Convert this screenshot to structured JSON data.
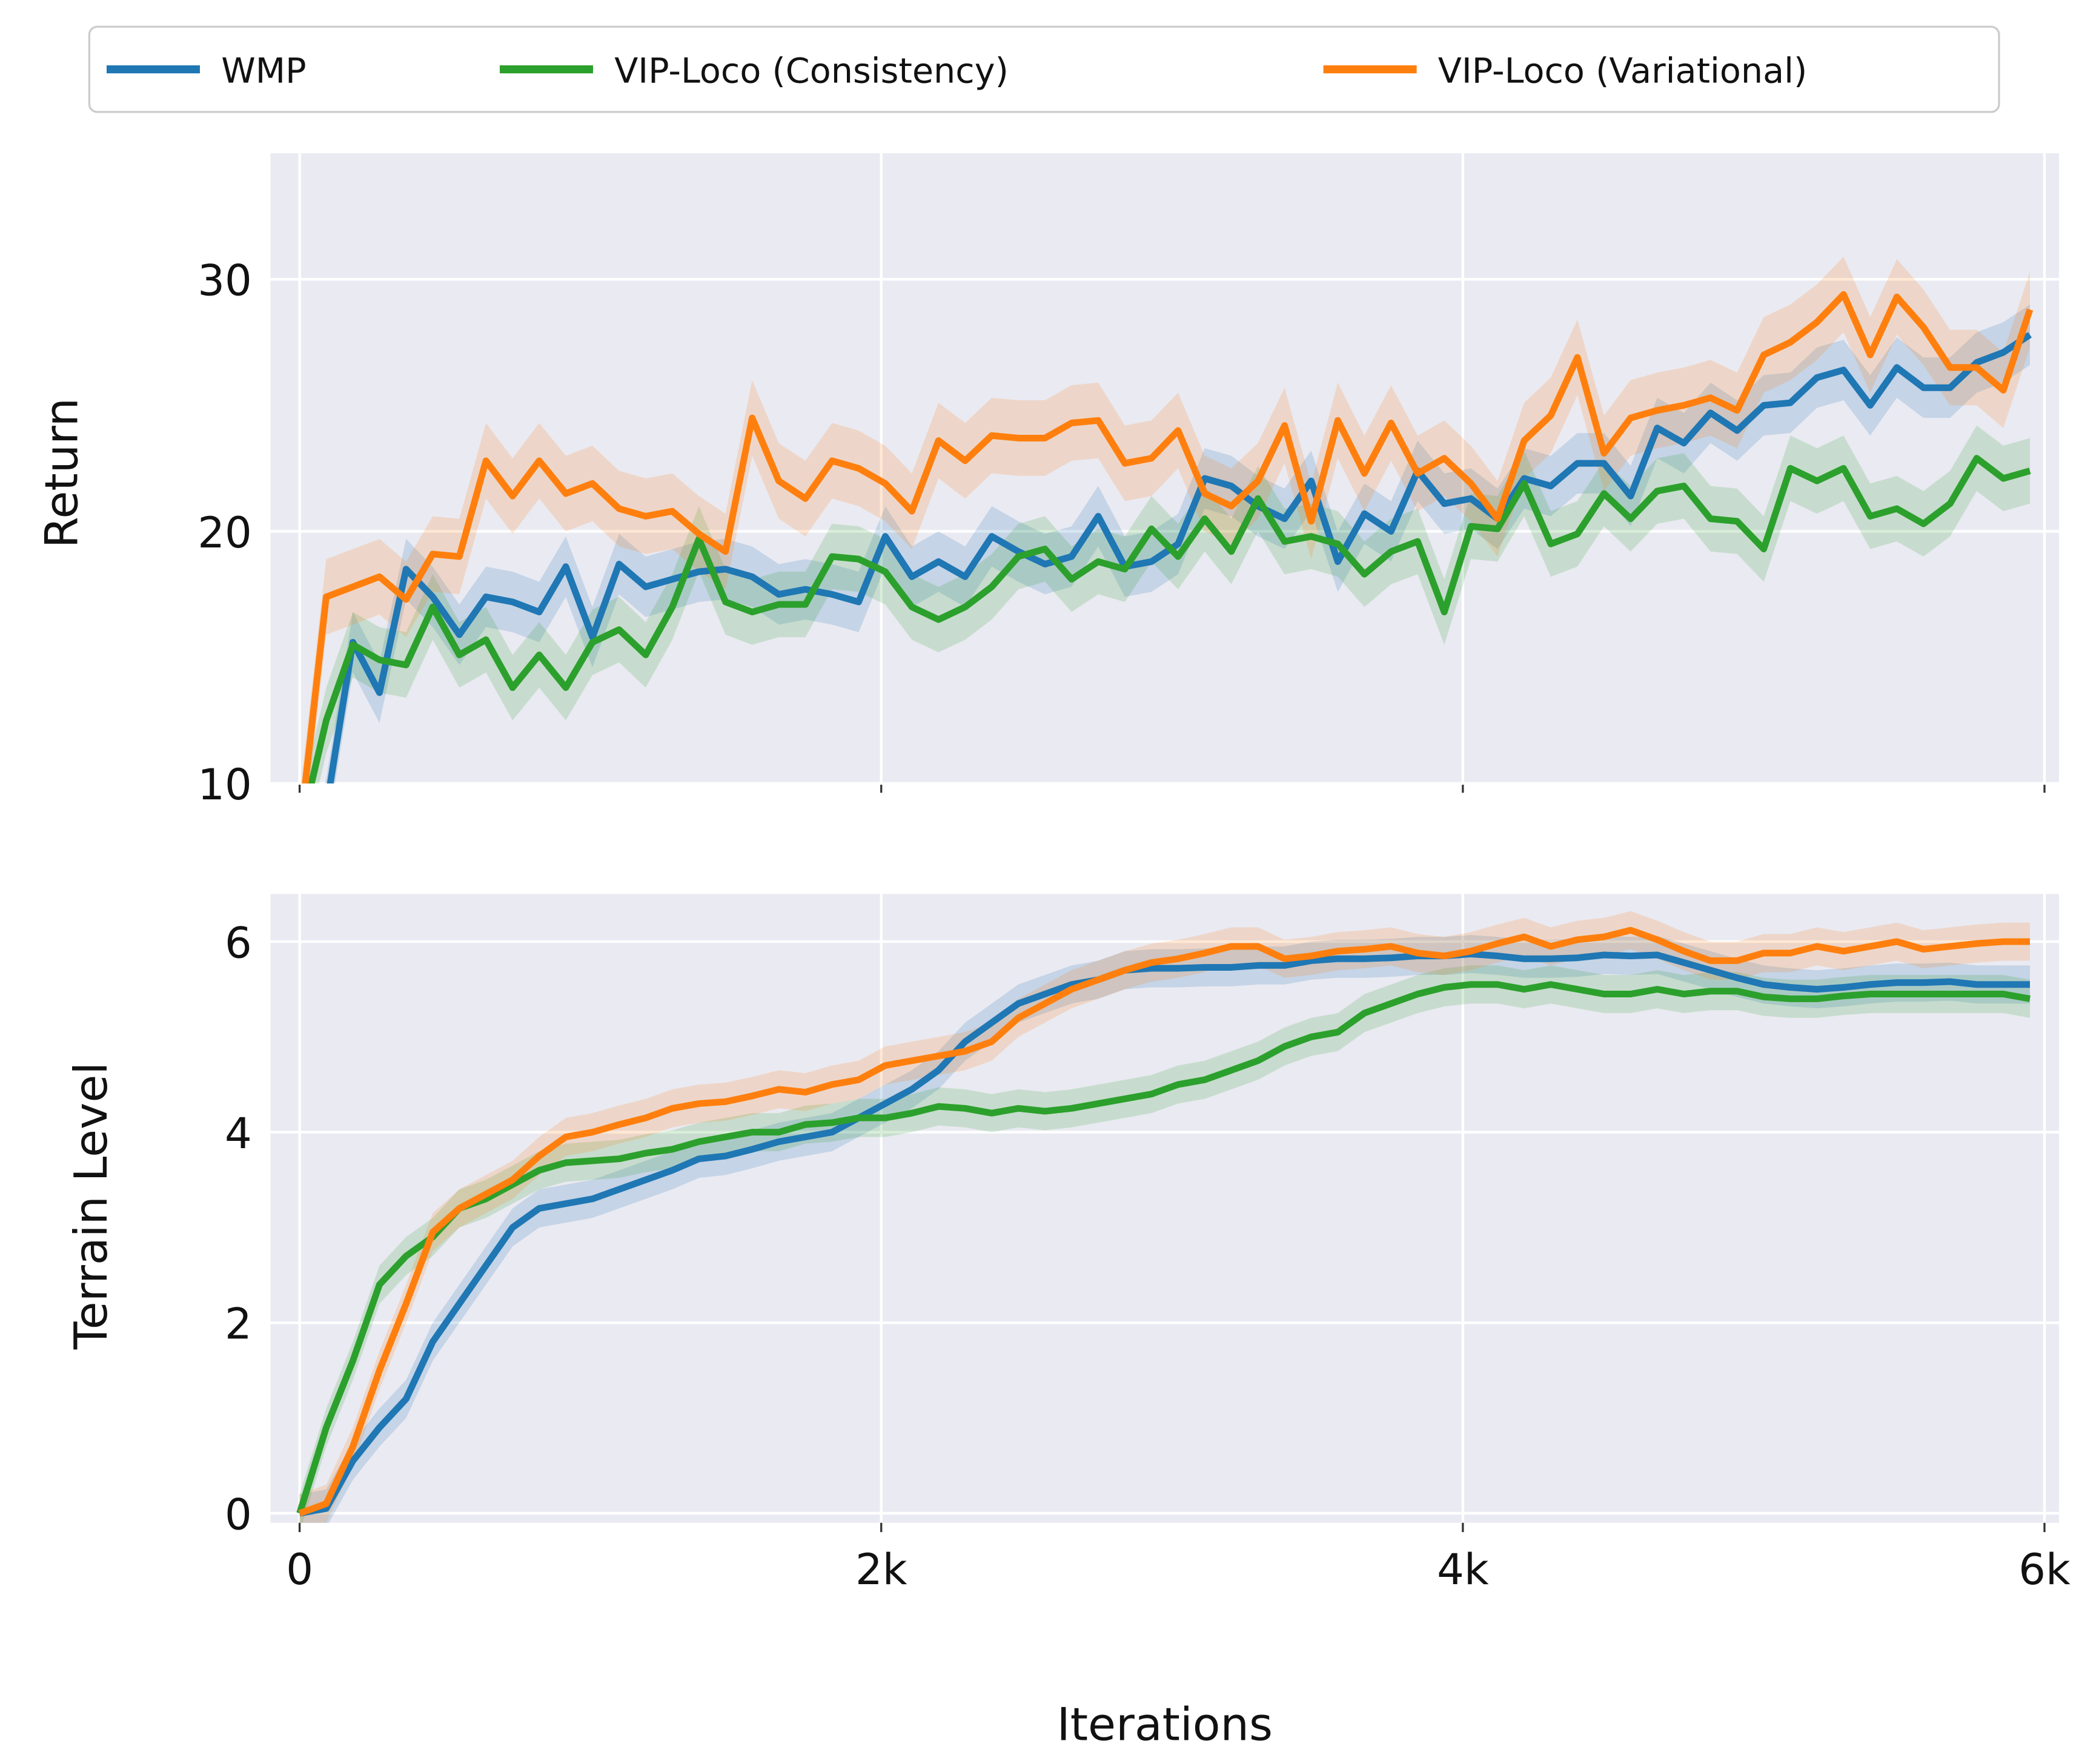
{
  "chart_data": [
    {
      "type": "line",
      "ylabel": "Return",
      "xlabel": "",
      "ylim": [
        10,
        35
      ],
      "yticks": [
        "10",
        "20",
        "30"
      ],
      "ytick_values": [
        10,
        20,
        30
      ],
      "xlim": [
        -100,
        6050
      ],
      "xtick_values": [
        0,
        2000,
        4000,
        6000
      ],
      "grid": true,
      "x_first": 0,
      "x_last": 5950,
      "series": [
        {
          "name": "WMP",
          "color": "#1f77b4",
          "band": 1.2,
          "values": [
            5,
            9,
            15.6,
            13.6,
            18.5,
            17.4,
            15.9,
            17.4,
            17.2,
            16.8,
            18.6,
            15.8,
            18.7,
            17.8,
            18.1,
            18.4,
            18.5,
            18.2,
            17.5,
            17.7,
            17.5,
            17.2,
            19.8,
            18.2,
            18.8,
            18.2,
            19.8,
            19.2,
            18.7,
            19.0,
            20.6,
            18.6,
            18.8,
            19.5,
            22.1,
            21.8,
            21.0,
            20.5,
            22.0,
            18.8,
            20.7,
            20.0,
            22.4,
            21.1,
            21.3,
            20.5,
            22.1,
            21.8,
            22.7,
            22.7,
            21.4,
            24.1,
            23.5,
            24.7,
            24.0,
            25.0,
            25.1,
            26.1,
            26.4,
            25.0,
            26.5,
            25.7,
            25.7,
            26.7,
            27.1,
            27.8
          ]
        },
        {
          "name": "VIP-Loco (Consistency)",
          "color": "#2ca02c",
          "band": 1.3,
          "values": [
            8,
            12.5,
            15.5,
            14.9,
            14.7,
            17.0,
            15.1,
            15.7,
            13.8,
            15.1,
            13.8,
            15.6,
            16.1,
            15.1,
            17.0,
            19.7,
            17.2,
            16.8,
            17.1,
            17.1,
            19.0,
            18.9,
            18.4,
            17.0,
            16.5,
            17.0,
            17.8,
            19.0,
            19.3,
            18.1,
            18.8,
            18.5,
            20.1,
            19.0,
            20.5,
            19.2,
            21.3,
            19.6,
            19.8,
            19.5,
            18.3,
            19.2,
            19.6,
            16.8,
            20.2,
            20.1,
            21.9,
            19.5,
            19.9,
            21.5,
            20.5,
            21.6,
            21.8,
            20.5,
            20.4,
            19.3,
            22.5,
            22.0,
            22.5,
            20.6,
            20.9,
            20.3,
            21.1,
            22.9,
            22.1,
            22.4
          ]
        },
        {
          "name": "VIP-Loco (Variational)",
          "color": "#ff7f0e",
          "band": 1.5,
          "values": [
            8,
            17.4,
            17.8,
            18.2,
            17.3,
            19.1,
            19.0,
            22.8,
            21.4,
            22.8,
            21.5,
            21.9,
            20.9,
            20.6,
            20.8,
            19.9,
            19.2,
            24.5,
            22.0,
            21.3,
            22.8,
            22.5,
            21.9,
            20.8,
            23.6,
            22.8,
            23.8,
            23.7,
            23.7,
            24.3,
            24.4,
            22.7,
            22.9,
            24.0,
            21.5,
            21.0,
            22.0,
            24.2,
            20.4,
            24.4,
            22.3,
            24.3,
            22.3,
            22.9,
            21.9,
            20.5,
            23.6,
            24.6,
            26.9,
            23.1,
            24.5,
            24.8,
            25.0,
            25.3,
            24.8,
            27.0,
            27.5,
            28.3,
            29.4,
            27.0,
            29.3,
            28.1,
            26.5,
            26.5,
            25.6,
            28.8
          ]
        }
      ]
    },
    {
      "type": "line",
      "ylabel": "Terrain Level",
      "xlabel": "Iterations",
      "ylim": [
        -0.1,
        6.5
      ],
      "yticks": [
        "0",
        "2",
        "4",
        "6"
      ],
      "ytick_values": [
        0,
        2,
        4,
        6
      ],
      "xlim": [
        -100,
        6050
      ],
      "xticks": [
        "0",
        "2k",
        "4k",
        "6k"
      ],
      "xtick_values": [
        0,
        2000,
        4000,
        6000
      ],
      "grid": true,
      "x_first": 0,
      "x_last": 5950,
      "series": [
        {
          "name": "WMP",
          "color": "#1f77b4",
          "band": 0.2,
          "values": [
            0,
            0.05,
            0.55,
            0.9,
            1.2,
            1.8,
            2.2,
            2.6,
            3.0,
            3.2,
            3.25,
            3.3,
            3.4,
            3.5,
            3.6,
            3.72,
            3.75,
            3.82,
            3.9,
            3.95,
            4.0,
            4.15,
            4.3,
            4.45,
            4.65,
            4.95,
            5.15,
            5.35,
            5.45,
            5.55,
            5.6,
            5.7,
            5.72,
            5.72,
            5.73,
            5.73,
            5.75,
            5.75,
            5.8,
            5.82,
            5.82,
            5.83,
            5.85,
            5.85,
            5.87,
            5.85,
            5.82,
            5.82,
            5.83,
            5.86,
            5.85,
            5.86,
            5.78,
            5.7,
            5.62,
            5.55,
            5.52,
            5.5,
            5.52,
            5.55,
            5.57,
            5.57,
            5.58,
            5.55,
            5.55,
            5.55
          ]
        },
        {
          "name": "VIP-Loco (Consistency)",
          "color": "#2ca02c",
          "band": 0.2,
          "values": [
            0,
            0.9,
            1.6,
            2.4,
            2.7,
            2.9,
            3.2,
            3.3,
            3.45,
            3.6,
            3.68,
            3.7,
            3.72,
            3.78,
            3.82,
            3.9,
            3.95,
            4.0,
            4.0,
            4.08,
            4.1,
            4.15,
            4.15,
            4.2,
            4.27,
            4.25,
            4.2,
            4.25,
            4.22,
            4.25,
            4.3,
            4.35,
            4.4,
            4.5,
            4.55,
            4.65,
            4.75,
            4.9,
            5.0,
            5.05,
            5.25,
            5.35,
            5.45,
            5.52,
            5.55,
            5.55,
            5.5,
            5.55,
            5.5,
            5.45,
            5.45,
            5.5,
            5.45,
            5.48,
            5.48,
            5.42,
            5.4,
            5.4,
            5.43,
            5.45,
            5.45,
            5.45,
            5.45,
            5.45,
            5.45,
            5.4
          ]
        },
        {
          "name": "VIP-Loco (Variational)",
          "color": "#ff7f0e",
          "band": 0.2,
          "values": [
            0,
            0.1,
            0.7,
            1.5,
            2.2,
            2.95,
            3.2,
            3.35,
            3.5,
            3.75,
            3.95,
            4.0,
            4.08,
            4.15,
            4.25,
            4.3,
            4.32,
            4.38,
            4.45,
            4.42,
            4.5,
            4.55,
            4.7,
            4.75,
            4.8,
            4.85,
            4.95,
            5.2,
            5.35,
            5.5,
            5.6,
            5.7,
            5.78,
            5.82,
            5.88,
            5.95,
            5.95,
            5.82,
            5.85,
            5.9,
            5.92,
            5.95,
            5.88,
            5.85,
            5.9,
            5.98,
            6.05,
            5.95,
            6.02,
            6.05,
            6.12,
            6.02,
            5.9,
            5.8,
            5.8,
            5.88,
            5.88,
            5.95,
            5.9,
            5.95,
            6.0,
            5.92,
            5.95,
            5.98,
            6.0,
            6.0
          ]
        }
      ]
    }
  ],
  "legend": {
    "placement": "top",
    "entries": [
      "WMP",
      "VIP-Loco (Consistency)",
      "VIP-Loco (Variational)"
    ]
  }
}
